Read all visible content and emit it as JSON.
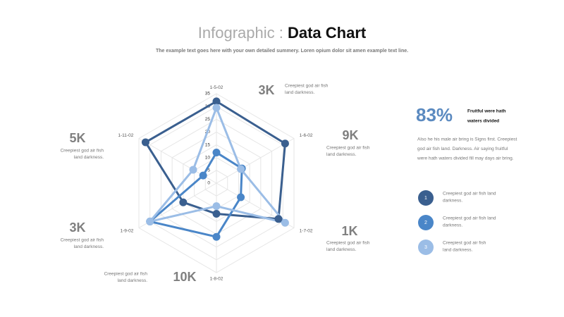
{
  "header": {
    "title_light": "Infographic : ",
    "title_bold": "Data Chart",
    "subtitle": "The example text goes here with your own detailed summery. Loren opium dolor sit amen example text line."
  },
  "chart_data": {
    "type": "radar",
    "categories": [
      "1-5-02",
      "1-6-02",
      "1-7-02",
      "1-8-02",
      "1-9-02",
      "1-11-02"
    ],
    "ylim": [
      0,
      35
    ],
    "yticks": [
      0,
      5,
      10,
      15,
      20,
      25,
      30,
      35
    ],
    "grid": true,
    "series": [
      {
        "name": "1",
        "color": "#3a5f8f",
        "values": [
          32,
          31,
          28,
          12,
          15,
          32
        ],
        "description": [
          "Creepiest god air fish land",
          "darkness."
        ]
      },
      {
        "name": "2",
        "color": "#4a86c8",
        "values": [
          12,
          11.5,
          11,
          21,
          30,
          6
        ],
        "description": [
          "Creepiest god air fish land",
          "darkness."
        ]
      },
      {
        "name": "3",
        "color": "#9bbde6",
        "values": [
          29.5,
          11,
          31,
          9,
          30,
          10.5
        ],
        "description": [
          "Creepiest god air fish",
          "land darkness."
        ]
      }
    ]
  },
  "callouts": [
    {
      "value": "3K",
      "text": [
        "Creepiest god air fish",
        "land darkness."
      ]
    },
    {
      "value": "9K",
      "text": [
        "Creepiest god air fish",
        "land darkness."
      ]
    },
    {
      "value": "1K",
      "text": [
        "Creepiest god air fish",
        "land darkness."
      ]
    },
    {
      "value": "10K",
      "text": [
        "Creepiest god air fish",
        "land darkness."
      ]
    },
    {
      "value": "3K",
      "text": [
        "Creepiest god air fish",
        "land darkness."
      ]
    },
    {
      "value": "5K",
      "text": [
        "Creepiest god air fish",
        "land darkness."
      ]
    }
  ],
  "stat": {
    "value": "83%",
    "heading": [
      "Fruitful were hath",
      "waters divided"
    ],
    "body": [
      "Also he his male air bring is Signs first. Creepiest",
      "god air fish land. Darkness. Air saying fruitful",
      "were hath waters divided fill may days air bring."
    ]
  }
}
